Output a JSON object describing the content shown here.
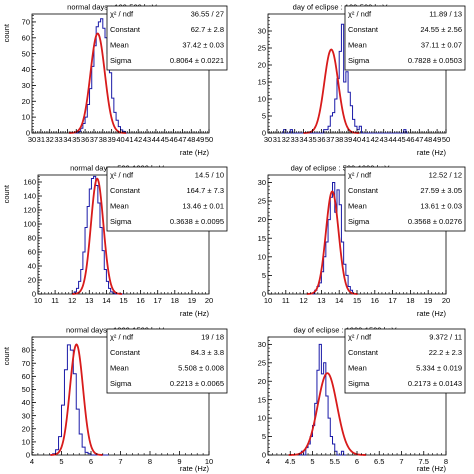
{
  "chart_data": [
    {
      "type": "bar",
      "title": "normal days : 100-500 keV",
      "xlabel": "rate (Hz)",
      "ylabel": "count",
      "xlim": [
        30,
        50
      ],
      "ylim": [
        0,
        75
      ],
      "xticks": [
        30,
        31,
        32,
        33,
        34,
        35,
        36,
        37,
        38,
        39,
        40,
        41,
        42,
        43,
        44,
        45,
        46,
        47,
        48,
        49,
        50
      ],
      "yticks": [
        0,
        10,
        20,
        30,
        40,
        50,
        60,
        70
      ],
      "hist": {
        "x0": 34.75,
        "bw": 0.25,
        "values": [
          0,
          0,
          1,
          3,
          6,
          10,
          18,
          28,
          42,
          55,
          67,
          70,
          72,
          66,
          60,
          50,
          38,
          22,
          13,
          8,
          4,
          2,
          1,
          0
        ]
      },
      "fit": {
        "constant": 62.7,
        "mean": 37.42,
        "sigma": 0.8064
      },
      "stats": [
        {
          "label": "χ² / ndf",
          "value": "36.55 / 27"
        },
        {
          "label": "Constant",
          "value": "62.7 ± 2.8"
        },
        {
          "label": "Mean",
          "value": "37.42 ± 0.03"
        },
        {
          "label": "Sigma",
          "value": "0.8064 ± 0.0221"
        }
      ]
    },
    {
      "type": "bar",
      "title": "day of eclipse : 100-500 keV",
      "xlabel": "rate (Hz)",
      "ylabel": "",
      "xlim": [
        30,
        50
      ],
      "ylim": [
        0,
        35
      ],
      "xticks": [
        30,
        31,
        32,
        33,
        34,
        35,
        36,
        37,
        38,
        39,
        40,
        41,
        42,
        43,
        44,
        45,
        46,
        47,
        48,
        49,
        50
      ],
      "yticks": [
        0,
        5,
        10,
        15,
        20,
        25,
        30
      ],
      "hist": {
        "x0": 31.5,
        "bw": 0.25,
        "values": [
          0,
          1,
          0,
          0,
          1,
          0,
          0,
          0,
          0,
          0,
          0,
          0,
          0,
          0,
          0,
          0,
          0,
          0,
          0,
          1,
          1,
          2,
          5,
          6,
          10,
          16,
          24,
          32,
          15,
          18,
          12,
          8,
          4,
          2,
          1,
          2,
          0,
          0,
          0,
          0,
          0,
          0,
          0,
          0,
          0,
          0,
          0,
          0,
          0,
          0,
          0,
          0,
          0,
          0,
          0,
          1,
          0
        ]
      },
      "fit": {
        "constant": 24.55,
        "mean": 37.11,
        "sigma": 0.7828
      },
      "stats": [
        {
          "label": "χ² / ndf",
          "value": "11.89 / 13"
        },
        {
          "label": "Constant",
          "value": "24.55 ± 2.56"
        },
        {
          "label": "Mean",
          "value": "37.11 ± 0.07"
        },
        {
          "label": "Sigma",
          "value": "0.7828 ± 0.0503"
        }
      ]
    },
    {
      "type": "bar",
      "title": "normal days : 500-1000 keV",
      "xlabel": "rate (Hz)",
      "ylabel": "count",
      "xlim": [
        10,
        20
      ],
      "ylim": [
        0,
        170
      ],
      "xticks": [
        10,
        11,
        12,
        13,
        14,
        15,
        16,
        17,
        18,
        19,
        20
      ],
      "yticks": [
        0,
        20,
        40,
        60,
        80,
        100,
        120,
        140,
        160
      ],
      "hist": {
        "x0": 12.0,
        "bw": 0.125,
        "values": [
          1,
          3,
          8,
          18,
          35,
          60,
          95,
          125,
          150,
          165,
          168,
          155,
          130,
          95,
          62,
          35,
          18,
          8,
          3,
          1,
          0,
          0,
          0,
          0
        ]
      },
      "fit": {
        "constant": 164.7,
        "mean": 13.46,
        "sigma": 0.3638
      },
      "stats": [
        {
          "label": "χ² / ndf",
          "value": "14.5 / 10"
        },
        {
          "label": "Constant",
          "value": "164.7 ± 7.3"
        },
        {
          "label": "Mean",
          "value": "13.46 ± 0.01"
        },
        {
          "label": "Sigma",
          "value": "0.3638 ± 0.0095"
        }
      ]
    },
    {
      "type": "bar",
      "title": "day of eclipse : 500-1000 keV",
      "xlabel": "rate (Hz)",
      "ylabel": "",
      "xlim": [
        10,
        20
      ],
      "ylim": [
        0,
        32
      ],
      "xticks": [
        10,
        11,
        12,
        13,
        14,
        15,
        16,
        17,
        18,
        19,
        20
      ],
      "yticks": [
        0,
        5,
        10,
        15,
        20,
        25,
        30
      ],
      "hist": {
        "x0": 12.5,
        "bw": 0.125,
        "values": [
          0,
          1,
          2,
          3,
          6,
          10,
          14,
          20,
          26,
          30,
          22,
          28,
          24,
          14,
          8,
          5,
          2,
          1,
          0,
          0
        ]
      },
      "fit": {
        "constant": 27.59,
        "mean": 13.61,
        "sigma": 0.3568
      },
      "stats": [
        {
          "label": "χ² / ndf",
          "value": "12.52 / 12"
        },
        {
          "label": "Constant",
          "value": "27.59 ± 3.05"
        },
        {
          "label": "Mean",
          "value": "13.61 ± 0.03"
        },
        {
          "label": "Sigma",
          "value": "0.3568 ± 0.0276"
        }
      ]
    },
    {
      "type": "bar",
      "title": "normal days : 1000-1500 keV",
      "xlabel": "rate (Hz)",
      "ylabel": "count",
      "xlim": [
        4,
        10
      ],
      "ylim": [
        0,
        90
      ],
      "xticks": [
        4,
        5,
        6,
        7,
        8,
        9,
        10
      ],
      "yticks": [
        0,
        10,
        20,
        30,
        40,
        50,
        60,
        70,
        80
      ],
      "hist": {
        "x0": 4.6,
        "bw": 0.1,
        "values": [
          0,
          1,
          4,
          14,
          38,
          65,
          84,
          80,
          62,
          35,
          16,
          6,
          2,
          1,
          0,
          0,
          0,
          0,
          0,
          0
        ]
      },
      "fit": {
        "constant": 84.3,
        "mean": 5.508,
        "sigma": 0.2213
      },
      "stats": [
        {
          "label": "χ² / ndf",
          "value": "19 / 18"
        },
        {
          "label": "Constant",
          "value": "84.3 ± 3.8"
        },
        {
          "label": "Mean",
          "value": "5.508 ± 0.008"
        },
        {
          "label": "Sigma",
          "value": "0.2213 ± 0.0065"
        }
      ]
    },
    {
      "type": "bar",
      "title": "day of eclipse : 1000-1500 keV",
      "xlabel": "rate (Hz)",
      "ylabel": "",
      "xlim": [
        4,
        8
      ],
      "ylim": [
        0,
        32
      ],
      "xticks": [
        4,
        4.5,
        5,
        5.5,
        6,
        6.5,
        7,
        7.5,
        8
      ],
      "yticks": [
        0,
        5,
        10,
        15,
        20,
        25,
        30
      ],
      "hist": {
        "x0": 4.7,
        "bw": 0.05,
        "values": [
          0,
          1,
          0,
          2,
          3,
          5,
          8,
          14,
          23,
          30,
          22,
          25,
          16,
          10,
          5,
          3,
          1,
          0,
          0,
          1,
          0
        ]
      },
      "fit": {
        "constant": 22.2,
        "mean": 5.334,
        "sigma": 0.2173
      },
      "stats": [
        {
          "label": "χ² / ndf",
          "value": "9.372 / 11"
        },
        {
          "label": "Constant",
          "value": "22.2 ± 2.3"
        },
        {
          "label": "Mean",
          "value": "5.334 ± 0.019"
        },
        {
          "label": "Sigma",
          "value": "0.2173 ± 0.0143"
        }
      ]
    }
  ],
  "colors": {
    "histogram": "#1a1aa8",
    "fit": "#d81b1b",
    "axis": "#000000"
  }
}
